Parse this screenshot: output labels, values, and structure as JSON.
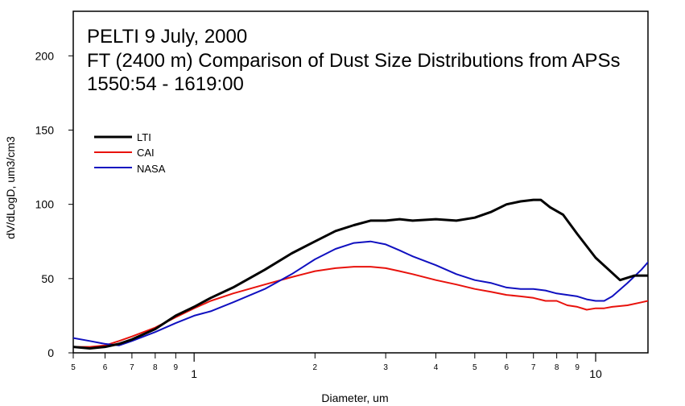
{
  "chart_data": {
    "type": "line",
    "title_lines": [
      "PELTI 9 July, 2000",
      "FT (2400 m) Comparison of Dust Size Distributions from APSs",
      "1550:54 - 1619:00"
    ],
    "xlabel": "Diameter, um",
    "ylabel": "dV/dLogD, um3/cm3",
    "x_scale": "log",
    "xlim": [
      0.5,
      13.5
    ],
    "ylim": [
      0,
      230
    ],
    "y_ticks": [
      0,
      50,
      100,
      150,
      200
    ],
    "x_major_ticks": [
      {
        "value": 1,
        "label": "1"
      },
      {
        "value": 10,
        "label": "10"
      }
    ],
    "x_minor_ticks": [
      {
        "value": 0.5,
        "label": "5"
      },
      {
        "value": 0.6,
        "label": "6"
      },
      {
        "value": 0.7,
        "label": "7"
      },
      {
        "value": 0.8,
        "label": "8"
      },
      {
        "value": 0.9,
        "label": "9"
      },
      {
        "value": 2,
        "label": "2"
      },
      {
        "value": 3,
        "label": "3"
      },
      {
        "value": 4,
        "label": "4"
      },
      {
        "value": 5,
        "label": "5"
      },
      {
        "value": 6,
        "label": "6"
      },
      {
        "value": 7,
        "label": "7"
      },
      {
        "value": 8,
        "label": "8"
      },
      {
        "value": 9,
        "label": "9"
      }
    ],
    "legend_position": "upper-left",
    "series": [
      {
        "name": "LTI",
        "color": "#000000",
        "width": 3,
        "x": [
          0.5,
          0.55,
          0.6,
          0.65,
          0.7,
          0.8,
          0.9,
          1.0,
          1.1,
          1.25,
          1.5,
          1.75,
          2.0,
          2.25,
          2.5,
          2.75,
          3.0,
          3.25,
          3.5,
          4.0,
          4.5,
          5.0,
          5.5,
          6.0,
          6.5,
          7.0,
          7.3,
          7.7,
          8.3,
          9.0,
          10.0,
          11.5,
          12.5,
          13.5
        ],
        "y": [
          4,
          3,
          4,
          6,
          9,
          16,
          25,
          31,
          37,
          44,
          56,
          67,
          75,
          82,
          86,
          89,
          89,
          90,
          89,
          90,
          89,
          91,
          95,
          100,
          102,
          103,
          103,
          98,
          93,
          80,
          64,
          49,
          52,
          52
        ]
      },
      {
        "name": "CAI",
        "color": "#e8120c",
        "width": 2,
        "x": [
          0.5,
          0.55,
          0.6,
          0.65,
          0.7,
          0.8,
          0.9,
          1.0,
          1.1,
          1.25,
          1.5,
          1.75,
          2.0,
          2.25,
          2.5,
          2.75,
          3.0,
          3.25,
          3.5,
          4.0,
          4.5,
          5.0,
          5.5,
          6.0,
          6.5,
          7.0,
          7.5,
          8.0,
          8.5,
          9.0,
          9.5,
          10.0,
          10.5,
          11.0,
          12.0,
          13.0,
          13.5
        ],
        "y": [
          4,
          4,
          5,
          8,
          11,
          17,
          24,
          30,
          35,
          40,
          46,
          51,
          55,
          57,
          58,
          58,
          57,
          55,
          53,
          49,
          46,
          43,
          41,
          39,
          38,
          37,
          35,
          35,
          32,
          31,
          29,
          30,
          30,
          31,
          32,
          34,
          35
        ]
      },
      {
        "name": "NASA",
        "color": "#1010c0",
        "width": 2,
        "x": [
          0.5,
          0.55,
          0.6,
          0.65,
          0.7,
          0.8,
          0.9,
          1.0,
          1.1,
          1.25,
          1.5,
          1.75,
          2.0,
          2.25,
          2.5,
          2.75,
          3.0,
          3.25,
          3.5,
          4.0,
          4.5,
          5.0,
          5.5,
          6.0,
          6.5,
          7.0,
          7.5,
          8.0,
          8.5,
          9.0,
          9.5,
          10.0,
          10.5,
          11.0,
          12.0,
          13.0,
          13.5
        ],
        "y": [
          10,
          8,
          6,
          5,
          8,
          14,
          20,
          25,
          28,
          34,
          43,
          53,
          63,
          70,
          74,
          75,
          73,
          69,
          65,
          59,
          53,
          49,
          47,
          44,
          43,
          43,
          42,
          40,
          39,
          38,
          36,
          35,
          35,
          38,
          47,
          56,
          61
        ]
      }
    ]
  }
}
